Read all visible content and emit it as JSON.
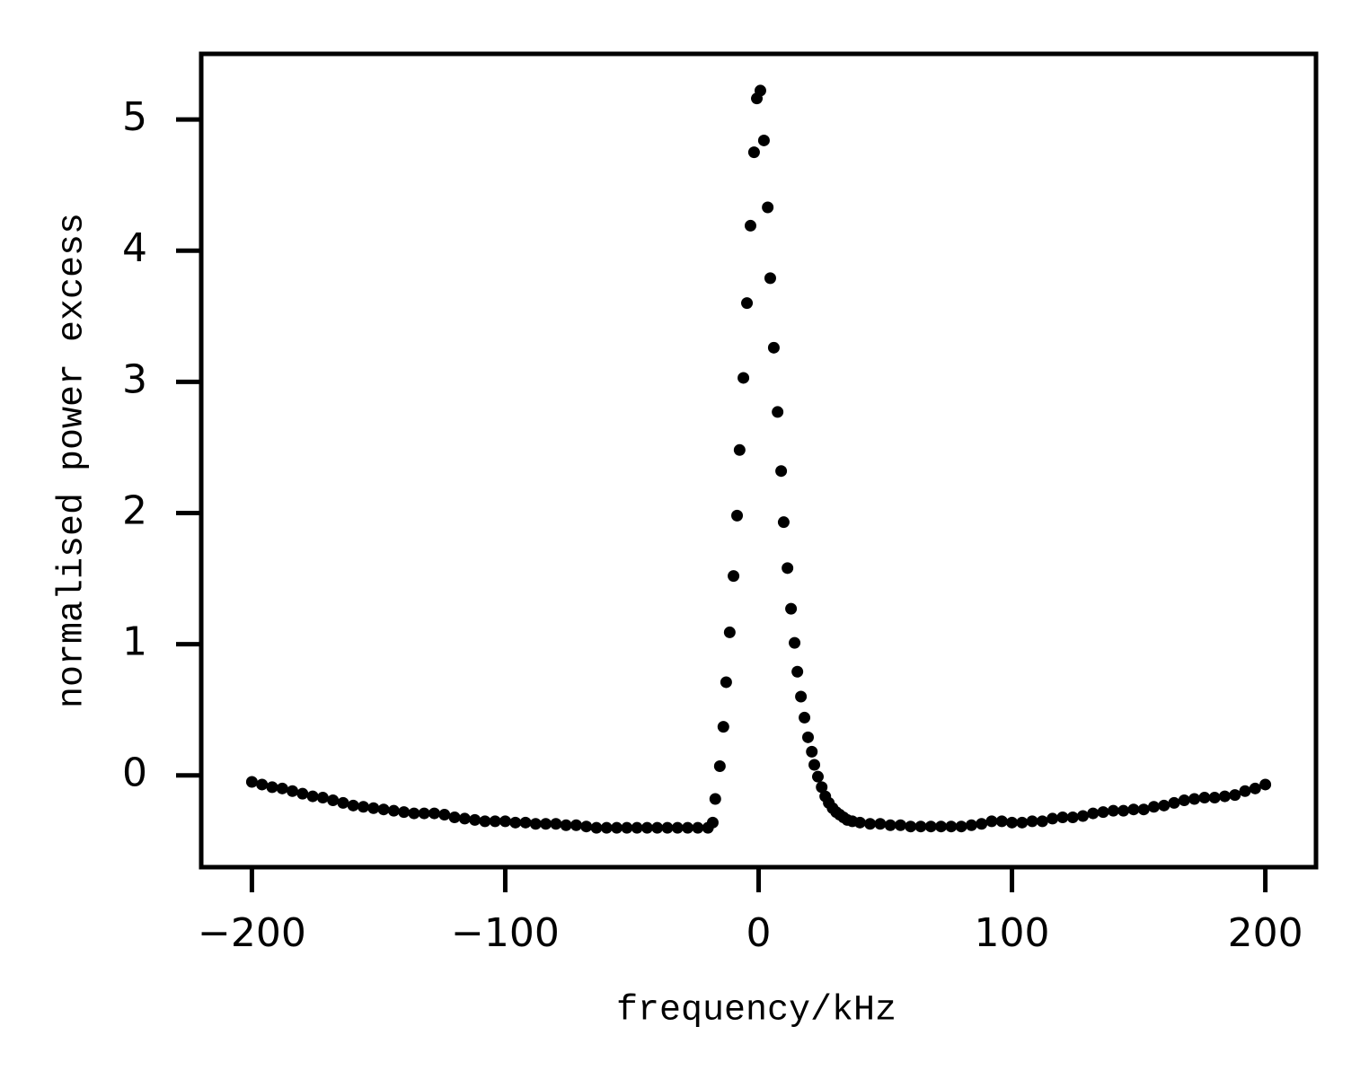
{
  "chart_data": {
    "type": "scatter",
    "xlabel": "frequency/kHz",
    "ylabel": "normalised power excess",
    "color": "#000000",
    "x": [
      -200,
      -196,
      -192,
      -188,
      -184,
      -180,
      -176,
      -172,
      -168,
      -164,
      -160,
      -156,
      -152,
      -148,
      -144,
      -140,
      -136,
      -132,
      -128,
      -124,
      -120,
      -116,
      -112,
      -108,
      -104,
      -100,
      -96,
      -92,
      -88,
      -84,
      -80,
      -76,
      -72,
      -68,
      -64,
      -60,
      -56,
      -52,
      -48,
      -44,
      -40,
      -36,
      -32,
      -28,
      -24,
      -20,
      -18.1,
      -17.1,
      -15.3,
      -13.9,
      -12.8,
      -11.4,
      -9.9,
      -8.5,
      -7.5,
      -6.0,
      -4.6,
      -3.2,
      -1.8,
      -0.7,
      0.7,
      2.1,
      3.6,
      4.6,
      6.0,
      7.5,
      8.9,
      9.9,
      11.4,
      12.8,
      14.2,
      15.3,
      16.7,
      18.1,
      19.5,
      21.0,
      22.0,
      23.4,
      24.9,
      26.3,
      27.7,
      29.2,
      30.6,
      32.0,
      33.5,
      35,
      37,
      40,
      44,
      48,
      52,
      56,
      60,
      64,
      68,
      72,
      76,
      80,
      84,
      88,
      92,
      96,
      100,
      104,
      108,
      112,
      116,
      120,
      124,
      128,
      132,
      136,
      140,
      144,
      148,
      152,
      156,
      160,
      164,
      168,
      172,
      176,
      180,
      184,
      188,
      192,
      196,
      200
    ],
    "values": [
      -0.05,
      -0.07,
      -0.09,
      -0.1,
      -0.12,
      -0.14,
      -0.16,
      -0.17,
      -0.19,
      -0.21,
      -0.23,
      -0.24,
      -0.25,
      -0.26,
      -0.27,
      -0.28,
      -0.29,
      -0.29,
      -0.29,
      -0.3,
      -0.32,
      -0.33,
      -0.34,
      -0.35,
      -0.35,
      -0.35,
      -0.36,
      -0.36,
      -0.37,
      -0.37,
      -0.37,
      -0.38,
      -0.38,
      -0.39,
      -0.4,
      -0.4,
      -0.4,
      -0.4,
      -0.4,
      -0.4,
      -0.4,
      -0.4,
      -0.4,
      -0.4,
      -0.4,
      -0.4,
      -0.36,
      -0.18,
      0.07,
      0.37,
      0.71,
      1.09,
      1.52,
      1.98,
      2.48,
      3.03,
      3.6,
      4.19,
      4.75,
      5.16,
      5.22,
      4.84,
      4.33,
      3.79,
      3.26,
      2.77,
      2.32,
      1.93,
      1.58,
      1.27,
      1.01,
      0.79,
      0.6,
      0.44,
      0.29,
      0.18,
      0.08,
      -0.01,
      -0.09,
      -0.16,
      -0.21,
      -0.25,
      -0.28,
      -0.3,
      -0.32,
      -0.34,
      -0.35,
      -0.36,
      -0.37,
      -0.37,
      -0.38,
      -0.38,
      -0.39,
      -0.39,
      -0.39,
      -0.39,
      -0.39,
      -0.39,
      -0.38,
      -0.37,
      -0.35,
      -0.35,
      -0.36,
      -0.36,
      -0.35,
      -0.35,
      -0.33,
      -0.32,
      -0.32,
      -0.31,
      -0.29,
      -0.28,
      -0.27,
      -0.27,
      -0.26,
      -0.26,
      -0.24,
      -0.23,
      -0.21,
      -0.19,
      -0.18,
      -0.17,
      -0.17,
      -0.16,
      -0.15,
      -0.12,
      -0.1,
      -0.07
    ],
    "xlim": [
      -220,
      220
    ],
    "xticks": [
      {
        "value": -200,
        "label": "−200"
      },
      {
        "value": -100,
        "label": "−100"
      },
      0,
      100,
      200
    ],
    "ylim": [
      -0.7,
      5.5
    ],
    "yticks": [
      0,
      1,
      2,
      3,
      4,
      5
    ],
    "grid": false
  }
}
